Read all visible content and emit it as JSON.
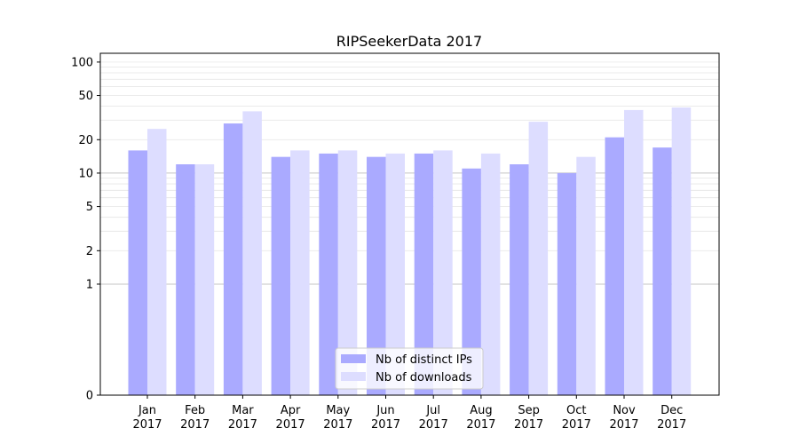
{
  "chart_data": {
    "type": "bar",
    "title": "RIPSeekerData 2017",
    "xlabel": "",
    "ylabel": "",
    "y_scale": "symlog",
    "ylim": [
      0,
      120
    ],
    "y_ticks": [
      0,
      1,
      2,
      5,
      10,
      20,
      50,
      100
    ],
    "y_tick_labels": [
      "0",
      "1",
      "2",
      "5",
      "10",
      "20",
      "50",
      "100"
    ],
    "categories": [
      [
        "Jan",
        "2017"
      ],
      [
        "Feb",
        "2017"
      ],
      [
        "Mar",
        "2017"
      ],
      [
        "Apr",
        "2017"
      ],
      [
        "May",
        "2017"
      ],
      [
        "Jun",
        "2017"
      ],
      [
        "Jul",
        "2017"
      ],
      [
        "Aug",
        "2017"
      ],
      [
        "Sep",
        "2017"
      ],
      [
        "Oct",
        "2017"
      ],
      [
        "Nov",
        "2017"
      ],
      [
        "Dec",
        "2017"
      ]
    ],
    "series": [
      {
        "name": "Nb of distinct IPs",
        "color": "#aaaaff",
        "values": [
          16,
          12,
          28,
          14,
          15,
          14,
          15,
          11,
          12,
          10,
          21,
          17
        ]
      },
      {
        "name": "Nb of downloads",
        "color": "#ddddff",
        "values": [
          25,
          12,
          36,
          16,
          16,
          15,
          16,
          15,
          29,
          14,
          37,
          39
        ]
      }
    ],
    "grid": true,
    "legend_position": "bottom-center"
  }
}
